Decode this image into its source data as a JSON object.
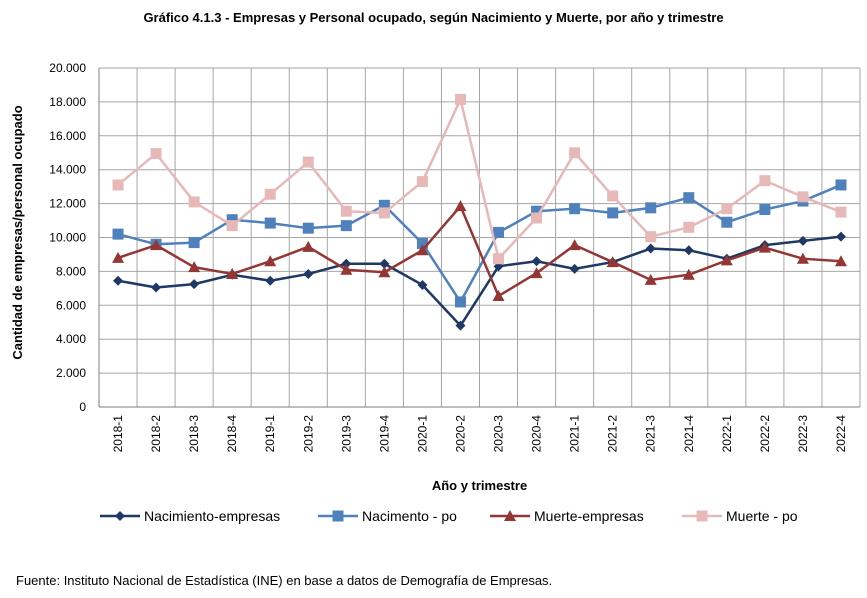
{
  "title": "Gráfico 4.1.3 - Empresas y Personal ocupado, según Nacimiento y Muerte, por año y trimestre",
  "source": "Fuente: Instituto Nacional de Estadística (INE) en base a datos de Demografía de Empresas.",
  "chart_data": {
    "type": "line",
    "title": "Gráfico 4.1.3 - Empresas y Personal ocupado, según Nacimiento y Muerte, por año y trimestre",
    "xlabel": "Año  y  trimestre",
    "ylabel": "Cantidad de empresas/personal ocupado",
    "ylim": [
      0,
      20000
    ],
    "yticks": [
      0,
      2000,
      4000,
      6000,
      8000,
      10000,
      12000,
      14000,
      16000,
      18000,
      20000
    ],
    "ytick_labels": [
      "0",
      "2.000",
      "4.000",
      "6.000",
      "8.000",
      "10.000",
      "12.000",
      "14.000",
      "16.000",
      "18.000",
      "20.000"
    ],
    "grid": true,
    "legend_position": "bottom",
    "categories": [
      "2018-1",
      "2018-2",
      "2018-3",
      "2018-4",
      "2019-1",
      "2019-2",
      "2019-3",
      "2019-4",
      "2020-1",
      "2020-2",
      "2020-3",
      "2020-4",
      "2021-1",
      "2021-2",
      "2021-3",
      "2021-4",
      "2022-1",
      "2022-2",
      "2022-3",
      "2022-4"
    ],
    "series": [
      {
        "name": "Nacimiento-empresas",
        "color": "#1f3864",
        "marker": "diamond",
        "values": [
          7450,
          7050,
          7250,
          7800,
          7450,
          7850,
          8450,
          8450,
          7200,
          4800,
          8300,
          8600,
          8150,
          8550,
          9350,
          9250,
          8750,
          9550,
          9800,
          10050
        ]
      },
      {
        "name": "Nacimento - po",
        "color": "#4f81bd",
        "marker": "square",
        "values": [
          10200,
          9600,
          9700,
          11050,
          10850,
          10550,
          10700,
          11900,
          9650,
          6200,
          10300,
          11550,
          11700,
          11450,
          11750,
          12350,
          10900,
          11650,
          12150,
          13100
        ]
      },
      {
        "name": "Muerte-empresas",
        "color": "#943634",
        "marker": "triangle",
        "values": [
          8800,
          9550,
          8250,
          7850,
          8600,
          9450,
          8100,
          7950,
          9250,
          11850,
          6550,
          7900,
          9550,
          8550,
          7500,
          7800,
          8650,
          9400,
          8750,
          8600
        ]
      },
      {
        "name": "Muerte  - po",
        "color": "#e6b9b8",
        "marker": "square",
        "values": [
          13100,
          14950,
          12100,
          10700,
          12550,
          14450,
          11550,
          11450,
          13300,
          18150,
          8750,
          11150,
          15000,
          12450,
          10050,
          10600,
          11700,
          13350,
          12400,
          11500
        ]
      }
    ]
  }
}
